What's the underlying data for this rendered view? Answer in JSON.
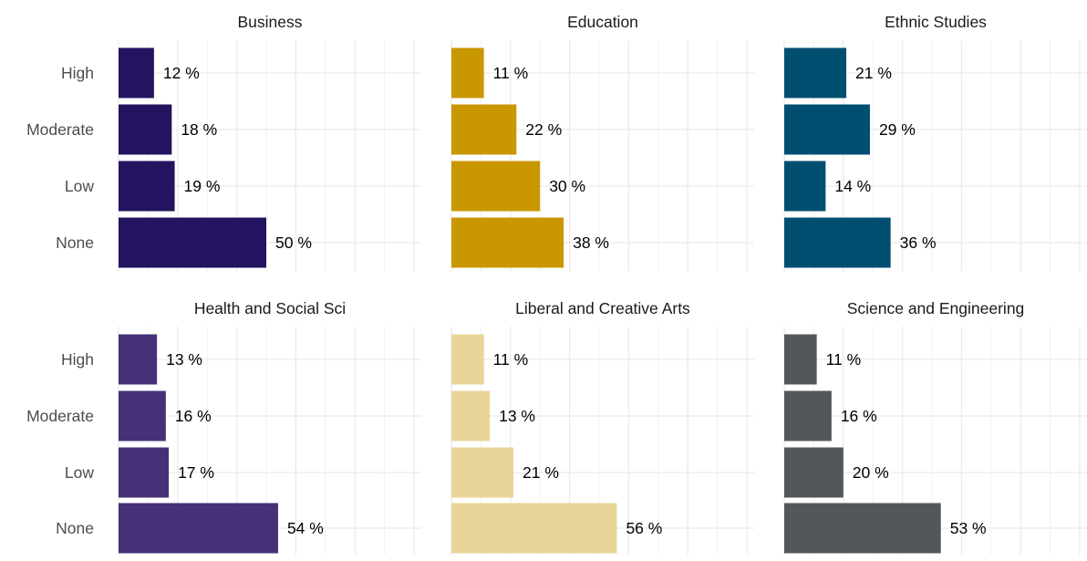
{
  "chart_data": {
    "type": "bar",
    "orientation": "horizontal",
    "categories": [
      "High",
      "Moderate",
      "Low",
      "None"
    ],
    "label_suffix": " %",
    "grid": true,
    "xlim": [
      0,
      100
    ],
    "panels": [
      {
        "title": "Business",
        "color": "#24135f",
        "values": [
          12,
          18,
          19,
          50
        ]
      },
      {
        "title": "Education",
        "color": "#c99700",
        "values": [
          11,
          22,
          30,
          38
        ]
      },
      {
        "title": "Ethnic Studies",
        "color": "#004f71",
        "values": [
          21,
          29,
          14,
          36
        ]
      },
      {
        "title": "Health and Social Sci",
        "color": "#463077",
        "values": [
          13,
          16,
          17,
          54
        ]
      },
      {
        "title": "Liberal and Creative Arts",
        "color": "#e9d597",
        "values": [
          11,
          13,
          21,
          56
        ]
      },
      {
        "title": "Science and Engineering",
        "color": "#53565a",
        "values": [
          11,
          16,
          20,
          53
        ]
      }
    ]
  }
}
